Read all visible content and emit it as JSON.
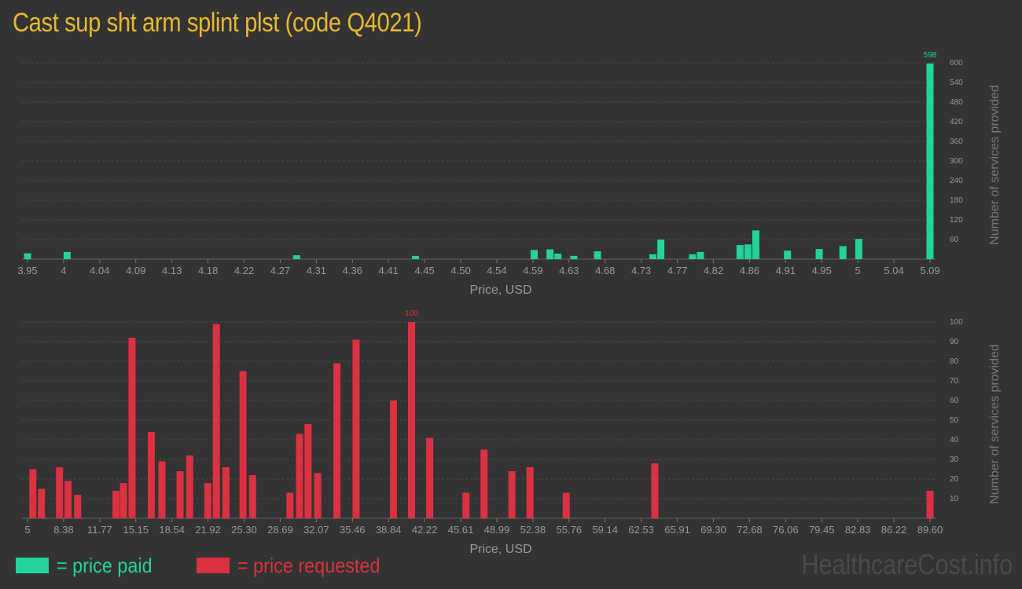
{
  "title": "Cast sup sht arm splint plst (code Q4021)",
  "legend": {
    "paid_label": "= price paid",
    "requested_label": "= price requested"
  },
  "watermark": "HealthcareCost.info",
  "colors": {
    "paid": "#23d39b",
    "requested": "#dc3140",
    "title": "#e8b92e",
    "background": "#333333",
    "axis_text": "#999999"
  },
  "chart_data": [
    {
      "type": "bar",
      "name": "price paid",
      "xlabel": "Price, USD",
      "ylabel": "Number of services provided",
      "xlim": [
        3.95,
        5.09
      ],
      "ylim": [
        0,
        600
      ],
      "grid": true,
      "x_ticks": [
        "3.95",
        "4",
        "4.04",
        "4.09",
        "4.13",
        "4.18",
        "4.22",
        "4.27",
        "4.31",
        "4.36",
        "4.41",
        "4.45",
        "4.50",
        "4.54",
        "4.59",
        "4.63",
        "4.68",
        "4.73",
        "4.77",
        "4.82",
        "4.86",
        "4.91",
        "4.95",
        "5",
        "5.04",
        "5.09"
      ],
      "y_ticks": [
        "60",
        "120",
        "180",
        "240",
        "300",
        "360",
        "420",
        "480",
        "540",
        "600"
      ],
      "max_label": "598",
      "points": [
        {
          "x": 3.95,
          "y": 18
        },
        {
          "x": 4.0,
          "y": 22
        },
        {
          "x": 4.29,
          "y": 12
        },
        {
          "x": 4.44,
          "y": 10
        },
        {
          "x": 4.59,
          "y": 28
        },
        {
          "x": 4.61,
          "y": 30
        },
        {
          "x": 4.62,
          "y": 17
        },
        {
          "x": 4.64,
          "y": 10
        },
        {
          "x": 4.67,
          "y": 24
        },
        {
          "x": 4.74,
          "y": 15
        },
        {
          "x": 4.75,
          "y": 60
        },
        {
          "x": 4.79,
          "y": 15
        },
        {
          "x": 4.8,
          "y": 22
        },
        {
          "x": 4.85,
          "y": 43
        },
        {
          "x": 4.86,
          "y": 45
        },
        {
          "x": 4.87,
          "y": 88
        },
        {
          "x": 4.91,
          "y": 26
        },
        {
          "x": 4.95,
          "y": 31
        },
        {
          "x": 4.98,
          "y": 40
        },
        {
          "x": 5.0,
          "y": 62
        },
        {
          "x": 5.09,
          "y": 598
        }
      ]
    },
    {
      "type": "bar",
      "name": "price requested",
      "xlabel": "Price, USD",
      "ylabel": "Number of services provided",
      "xlim": [
        5,
        89.6
      ],
      "ylim": [
        0,
        100
      ],
      "grid": true,
      "x_ticks": [
        "5",
        "8.38",
        "11.77",
        "15.15",
        "18.54",
        "21.92",
        "25.30",
        "28.69",
        "32.07",
        "35.46",
        "38.84",
        "42.22",
        "45.61",
        "48.99",
        "52.38",
        "55.76",
        "59.14",
        "62.53",
        "65.91",
        "69.30",
        "72.68",
        "76.06",
        "79.45",
        "82.83",
        "86.22",
        "89.60"
      ],
      "y_ticks": [
        "10",
        "20",
        "30",
        "40",
        "50",
        "60",
        "70",
        "80",
        "90",
        "100"
      ],
      "max_label": "100",
      "points": [
        {
          "x": 5.5,
          "y": 25
        },
        {
          "x": 6.3,
          "y": 15
        },
        {
          "x": 8.0,
          "y": 26
        },
        {
          "x": 8.8,
          "y": 19
        },
        {
          "x": 9.7,
          "y": 12
        },
        {
          "x": 13.3,
          "y": 14
        },
        {
          "x": 14.0,
          "y": 18
        },
        {
          "x": 14.8,
          "y": 92
        },
        {
          "x": 16.6,
          "y": 44
        },
        {
          "x": 17.6,
          "y": 29
        },
        {
          "x": 19.3,
          "y": 24
        },
        {
          "x": 20.2,
          "y": 32
        },
        {
          "x": 21.9,
          "y": 18
        },
        {
          "x": 22.7,
          "y": 99
        },
        {
          "x": 23.6,
          "y": 26
        },
        {
          "x": 25.2,
          "y": 75
        },
        {
          "x": 26.1,
          "y": 22
        },
        {
          "x": 29.6,
          "y": 13
        },
        {
          "x": 30.5,
          "y": 43
        },
        {
          "x": 31.3,
          "y": 48
        },
        {
          "x": 32.2,
          "y": 23
        },
        {
          "x": 34.0,
          "y": 79
        },
        {
          "x": 35.8,
          "y": 91
        },
        {
          "x": 39.3,
          "y": 60
        },
        {
          "x": 41.0,
          "y": 100
        },
        {
          "x": 42.7,
          "y": 41
        },
        {
          "x": 46.1,
          "y": 13
        },
        {
          "x": 47.8,
          "y": 35
        },
        {
          "x": 50.4,
          "y": 24
        },
        {
          "x": 52.1,
          "y": 26
        },
        {
          "x": 55.5,
          "y": 13
        },
        {
          "x": 63.8,
          "y": 28
        },
        {
          "x": 89.6,
          "y": 14
        }
      ]
    }
  ]
}
